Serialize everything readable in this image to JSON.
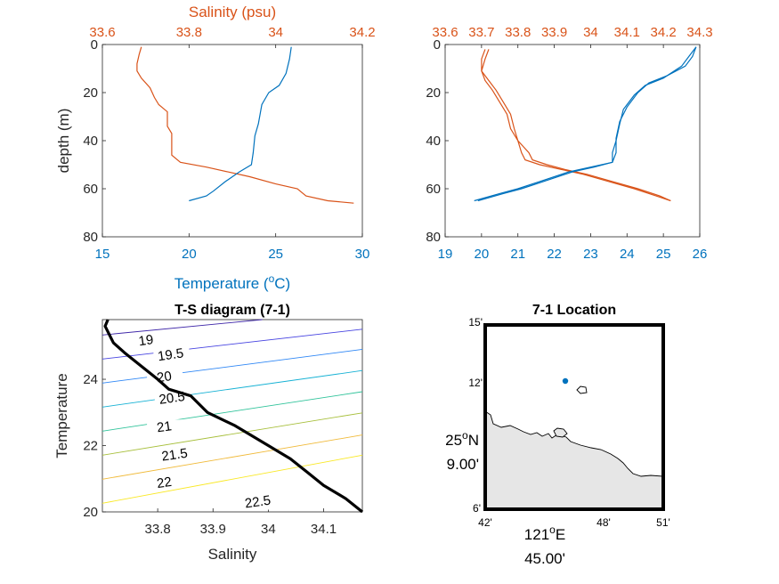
{
  "colors": {
    "salinity": "#d95319",
    "temperature": "#0072bd",
    "axis": "#262626",
    "land": "#e6e6e6",
    "tsline": "#000000"
  },
  "chart_data": [
    {
      "id": "profile-1",
      "type": "line",
      "xlabel_top": "Salinity (psu)",
      "xlabel_bottom": "Temperature (oC)",
      "ylabel": "depth (m)",
      "ylim": [
        0,
        80
      ],
      "y_reversed": true,
      "xlim_top": [
        33.6,
        34.2
      ],
      "xlim_bottom": [
        15,
        30
      ],
      "yticks": [
        "0",
        "20",
        "40",
        "60",
        "80"
      ],
      "xticks_top": [
        "33.6",
        "33.8",
        "34",
        "34.2"
      ],
      "xticks_bottom": [
        "15",
        "20",
        "25",
        "30"
      ],
      "series": [
        {
          "axis": "salinity",
          "points": [
            [
              33.69,
              1
            ],
            [
              33.685,
              4
            ],
            [
              33.68,
              8
            ],
            [
              33.68,
              11
            ],
            [
              33.69,
              14
            ],
            [
              33.71,
              18
            ],
            [
              33.72,
              22
            ],
            [
              33.73,
              25
            ],
            [
              33.75,
              28
            ],
            [
              33.75,
              34
            ],
            [
              33.76,
              37
            ],
            [
              33.76,
              42
            ],
            [
              33.76,
              46
            ],
            [
              33.78,
              49
            ],
            [
              33.84,
              51
            ],
            [
              33.89,
              53
            ],
            [
              33.94,
              55
            ],
            [
              34.0,
              58
            ],
            [
              34.05,
              60
            ],
            [
              34.07,
              63
            ],
            [
              34.12,
              65
            ],
            [
              34.18,
              66
            ]
          ]
        },
        {
          "axis": "temperature",
          "points": [
            [
              25.9,
              1
            ],
            [
              25.8,
              6
            ],
            [
              25.6,
              12
            ],
            [
              25.2,
              17
            ],
            [
              24.6,
              20
            ],
            [
              24.2,
              25
            ],
            [
              24.0,
              33
            ],
            [
              23.8,
              38
            ],
            [
              23.7,
              45
            ],
            [
              23.6,
              50
            ],
            [
              22.9,
              53
            ],
            [
              22.1,
              57
            ],
            [
              21.4,
              61
            ],
            [
              21.0,
              63
            ],
            [
              20.0,
              65
            ]
          ]
        }
      ]
    },
    {
      "id": "profile-2",
      "type": "line",
      "ylim": [
        0,
        80
      ],
      "y_reversed": true,
      "xlim_top": [
        33.6,
        34.3
      ],
      "xlim_bottom": [
        19,
        26
      ],
      "yticks": [
        "0",
        "20",
        "40",
        "60",
        "80"
      ],
      "xticks_top": [
        "33.6",
        "33.7",
        "33.8",
        "33.9",
        "34",
        "34.1",
        "34.2",
        "34.3"
      ],
      "xticks_bottom": [
        "19",
        "20",
        "21",
        "22",
        "23",
        "24",
        "25",
        "26"
      ],
      "series": [
        {
          "axis": "salinity",
          "points": [
            [
              33.71,
              2
            ],
            [
              33.7,
              6
            ],
            [
              33.7,
              11
            ],
            [
              33.71,
              15
            ],
            [
              33.73,
              19
            ],
            [
              33.75,
              24
            ],
            [
              33.77,
              29
            ],
            [
              33.78,
              35
            ],
            [
              33.8,
              40
            ],
            [
              33.81,
              45
            ],
            [
              33.82,
              48
            ],
            [
              33.86,
              50
            ],
            [
              33.92,
              52
            ],
            [
              33.98,
              54
            ],
            [
              34.05,
              57
            ],
            [
              34.12,
              60
            ],
            [
              34.18,
              63
            ],
            [
              34.22,
              65
            ]
          ]
        },
        {
          "axis": "salinity",
          "points": [
            [
              33.72,
              2
            ],
            [
              33.71,
              6
            ],
            [
              33.7,
              11
            ],
            [
              33.72,
              15
            ],
            [
              33.74,
              19
            ],
            [
              33.76,
              24
            ],
            [
              33.78,
              29
            ],
            [
              33.79,
              35
            ],
            [
              33.8,
              40
            ],
            [
              33.83,
              45
            ],
            [
              33.84,
              48
            ],
            [
              33.88,
              50
            ],
            [
              33.93,
              52
            ],
            [
              33.99,
              54
            ],
            [
              34.06,
              57
            ],
            [
              34.13,
              60
            ],
            [
              34.19,
              63
            ],
            [
              34.22,
              65
            ]
          ]
        },
        {
          "axis": "temperature",
          "points": [
            [
              25.9,
              1
            ],
            [
              25.7,
              5
            ],
            [
              25.5,
              9
            ],
            [
              25.0,
              14
            ],
            [
              24.5,
              17
            ],
            [
              24.2,
              21
            ],
            [
              23.9,
              27
            ],
            [
              23.8,
              33
            ],
            [
              23.7,
              40
            ],
            [
              23.6,
              45
            ],
            [
              23.6,
              49
            ],
            [
              23.0,
              51
            ],
            [
              22.4,
              53
            ],
            [
              21.6,
              57
            ],
            [
              21.0,
              60
            ],
            [
              20.5,
              62
            ],
            [
              19.8,
              65
            ]
          ]
        },
        {
          "axis": "temperature",
          "points": [
            [
              25.9,
              1
            ],
            [
              25.8,
              5
            ],
            [
              25.6,
              9
            ],
            [
              25.1,
              13
            ],
            [
              24.6,
              16
            ],
            [
              24.3,
              20
            ],
            [
              24.0,
              26
            ],
            [
              23.8,
              32
            ],
            [
              23.7,
              39
            ],
            [
              23.7,
              45
            ],
            [
              23.6,
              49
            ],
            [
              23.1,
              51
            ],
            [
              22.5,
              53
            ],
            [
              21.7,
              57
            ],
            [
              21.1,
              60
            ],
            [
              20.6,
              62
            ],
            [
              19.9,
              65
            ]
          ]
        }
      ]
    },
    {
      "id": "ts-diagram",
      "type": "line",
      "title": "T-S diagram (7-1)",
      "xlabel": "Salinity",
      "ylabel": "Temperature",
      "xlim": [
        33.7,
        34.17
      ],
      "ylim": [
        20,
        25.8
      ],
      "xticks": [
        "33.8",
        "33.9",
        "34",
        "34.1"
      ],
      "yticks": [
        "20",
        "22",
        "24"
      ],
      "contour_levels": [
        "19",
        "19.5",
        "20",
        "20.5",
        "21",
        "21.5",
        "22",
        "22.5"
      ],
      "series": [
        {
          "name": "",
          "points": [
            [
              33.71,
              25.8
            ],
            [
              33.705,
              25.6
            ],
            [
              33.72,
              25.1
            ],
            [
              33.74,
              24.8
            ],
            [
              33.77,
              24.4
            ],
            [
              33.8,
              24.0
            ],
            [
              33.82,
              23.7
            ],
            [
              33.86,
              23.5
            ],
            [
              33.89,
              23.0
            ],
            [
              33.94,
              22.6
            ],
            [
              34.0,
              22.0
            ],
            [
              34.04,
              21.6
            ],
            [
              34.07,
              21.2
            ],
            [
              34.1,
              20.8
            ],
            [
              34.14,
              20.4
            ],
            [
              34.17,
              20.0
            ]
          ]
        }
      ]
    },
    {
      "id": "location-map",
      "type": "map",
      "title": "7-1 Location",
      "lon_ticks": [
        "42'",
        "121oE 45.00'",
        "48'",
        "51'"
      ],
      "lat_ticks": [
        "15'",
        "12'",
        "25oN 9.00'",
        "6'"
      ],
      "station": {
        "lon": 45.8,
        "lat": 12.2
      }
    }
  ]
}
